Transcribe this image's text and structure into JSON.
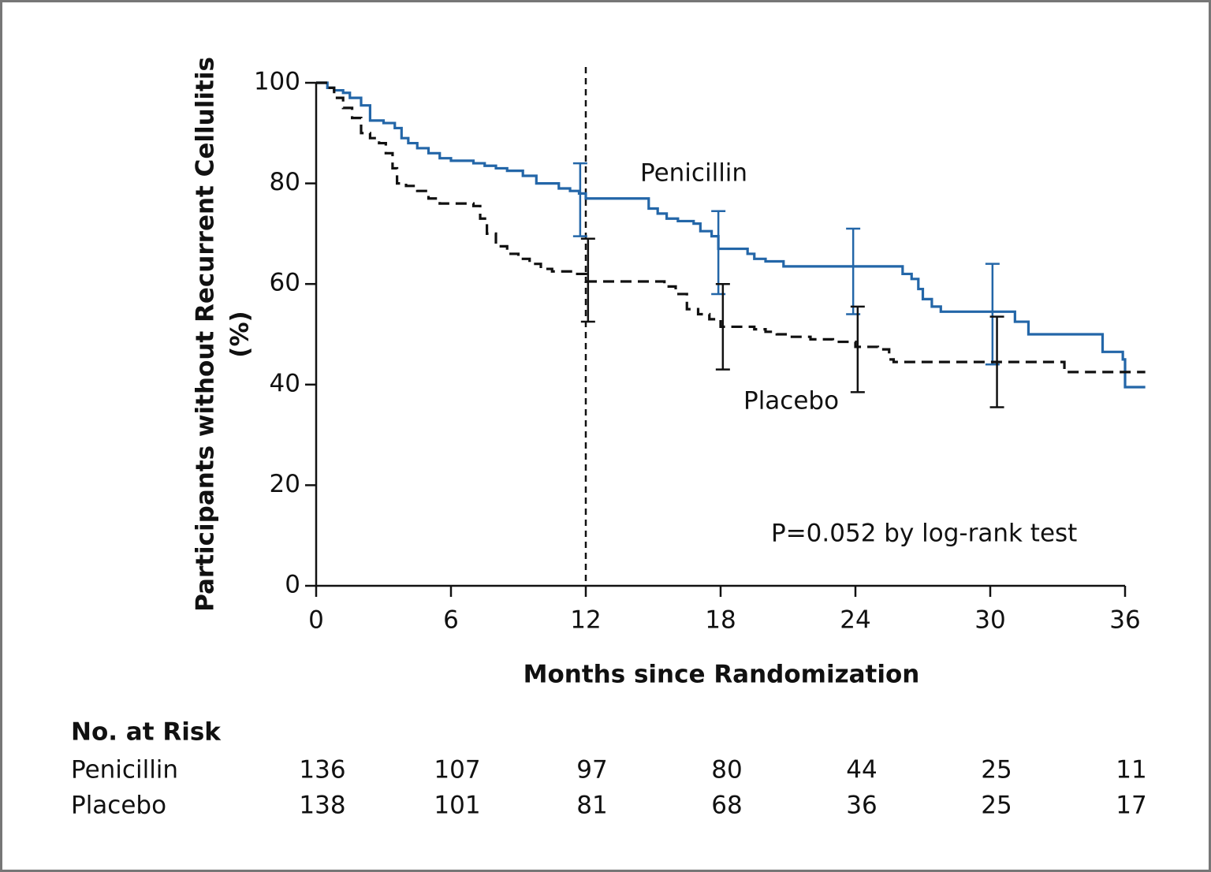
{
  "chart_data": {
    "type": "step",
    "xlabel": "Months since Randomization",
    "ylabel": [
      "Participants without Recurrent Cellulitis",
      "(%)"
    ],
    "xlim": [
      0,
      36
    ],
    "ylim": [
      0,
      100
    ],
    "xticks": [
      0,
      6,
      12,
      18,
      24,
      30,
      36
    ],
    "yticks": [
      0,
      20,
      40,
      60,
      80,
      100
    ],
    "vline": 12,
    "annotation": "P=0.052 by log-rank test",
    "series": [
      {
        "name": "Penicillin",
        "color": "#2366a8",
        "dash": false,
        "x": [
          0,
          0.5,
          0.8,
          1.2,
          1.5,
          2,
          2.4,
          3,
          3.5,
          3.8,
          4.1,
          4.5,
          5,
          5.5,
          6,
          7,
          7.5,
          8,
          8.5,
          9.2,
          9.8,
          10.8,
          11.3,
          11.7,
          12,
          14.5,
          14.8,
          15.2,
          15.6,
          16.1,
          16.8,
          17.1,
          17.6,
          17.9,
          19.2,
          19.5,
          20,
          20.8,
          25.7,
          26.1,
          26.5,
          26.8,
          27,
          27.4,
          27.8,
          31.1,
          31.7,
          35,
          35.9,
          36,
          36.9
        ],
        "values": [
          100,
          99,
          98.5,
          98,
          97,
          95.5,
          92.5,
          92,
          91,
          89,
          88,
          87,
          86,
          85,
          84.5,
          84,
          83.5,
          83,
          82.5,
          81.5,
          80,
          79,
          78.5,
          78,
          77,
          77,
          75,
          74,
          73,
          72.5,
          72,
          70.5,
          69.5,
          67,
          66,
          65,
          64.5,
          63.5,
          63.5,
          62,
          61,
          59,
          57,
          55.5,
          54.5,
          52.5,
          50,
          46.5,
          45,
          39.5,
          39.5
        ],
        "errorbars": [
          {
            "x": 11.75,
            "value": 78,
            "lower": 69.5,
            "upper": 84
          },
          {
            "x": 17.9,
            "value": 67,
            "lower": 58,
            "upper": 74.5
          },
          {
            "x": 23.9,
            "value": 63.5,
            "lower": 54,
            "upper": 71
          },
          {
            "x": 30.1,
            "value": 54.5,
            "lower": 44,
            "upper": 64
          }
        ]
      },
      {
        "name": "Placebo",
        "color": "#111111",
        "dash": true,
        "x": [
          0,
          0.5,
          0.8,
          1.2,
          1.6,
          2,
          2.4,
          2.8,
          3.1,
          3.4,
          3.6,
          4,
          4.5,
          5,
          5.5,
          7,
          7.3,
          7.6,
          8,
          8.5,
          9,
          9.5,
          10,
          10.5,
          11.5,
          12,
          15,
          15.5,
          16,
          16.5,
          17,
          17.5,
          18,
          19.5,
          20,
          20.5,
          21,
          22,
          23,
          24,
          25,
          25.5,
          25.7,
          33.3,
          36.9
        ],
        "values": [
          100,
          99,
          97,
          95,
          93,
          90,
          89,
          88,
          86,
          83,
          80,
          79.5,
          78.5,
          77,
          76,
          75.5,
          73,
          70,
          67.5,
          66,
          65,
          64,
          63,
          62.5,
          62,
          60.5,
          60.5,
          59.5,
          58,
          55,
          54,
          53,
          51.5,
          51,
          50.5,
          50,
          49.5,
          49,
          48.5,
          47.5,
          47,
          45,
          44.5,
          42.5,
          42.5
        ],
        "errorbars": [
          {
            "x": 12.1,
            "value": 60.5,
            "lower": 52.5,
            "upper": 69
          },
          {
            "x": 18.1,
            "value": 51.5,
            "lower": 43,
            "upper": 60
          },
          {
            "x": 24.1,
            "value": 47.5,
            "lower": 38.5,
            "upper": 55.5
          },
          {
            "x": 30.3,
            "value": 44.5,
            "lower": 35.5,
            "upper": 53.5
          }
        ]
      }
    ],
    "risk_table": {
      "title": "No. at Risk",
      "rows": [
        {
          "name": "Penicillin",
          "values": [
            136,
            107,
            97,
            80,
            44,
            25,
            11
          ]
        },
        {
          "name": "Placebo",
          "values": [
            138,
            101,
            81,
            68,
            36,
            25,
            17
          ]
        }
      ]
    }
  }
}
